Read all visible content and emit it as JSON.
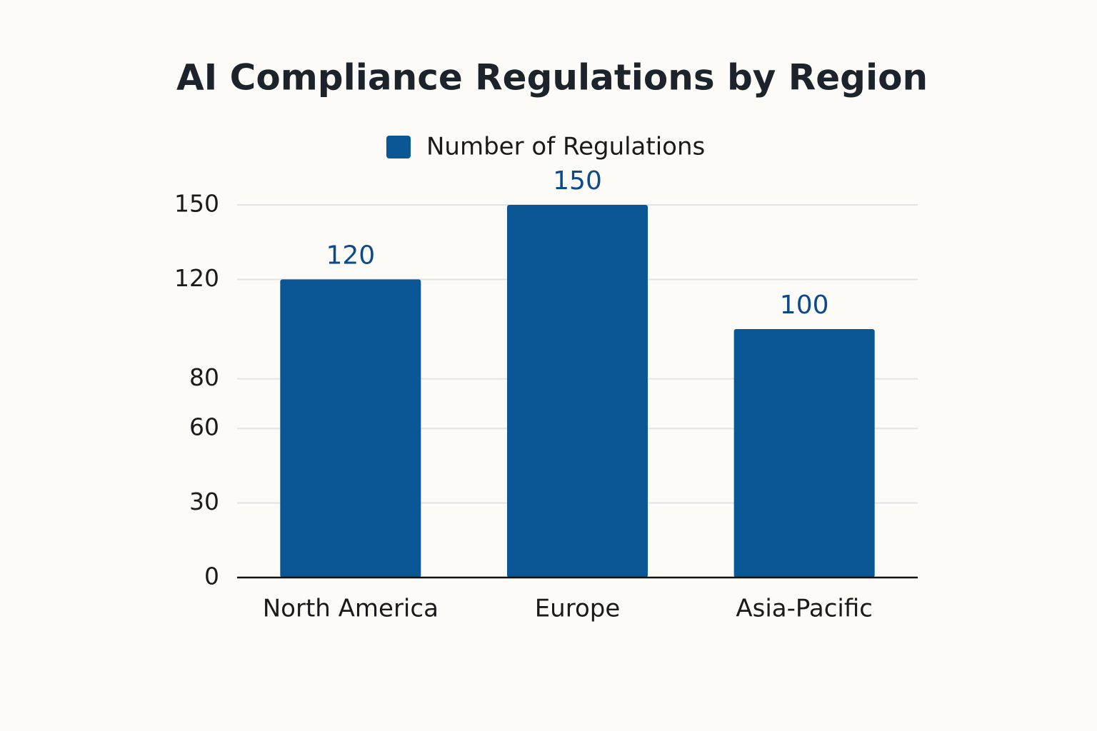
{
  "chart_data": {
    "type": "bar",
    "title": "AI Compliance Regulations by Region",
    "categories": [
      "North America",
      "Europe",
      "Asia-Pacific"
    ],
    "series": [
      {
        "name": "Number of Regulations",
        "color": "#0b5796",
        "values": [
          120,
          150,
          100
        ]
      }
    ],
    "ylim": [
      0,
      150
    ],
    "yticks": [
      0,
      30,
      60,
      80,
      120,
      150
    ],
    "grid": true,
    "legend": "top"
  }
}
